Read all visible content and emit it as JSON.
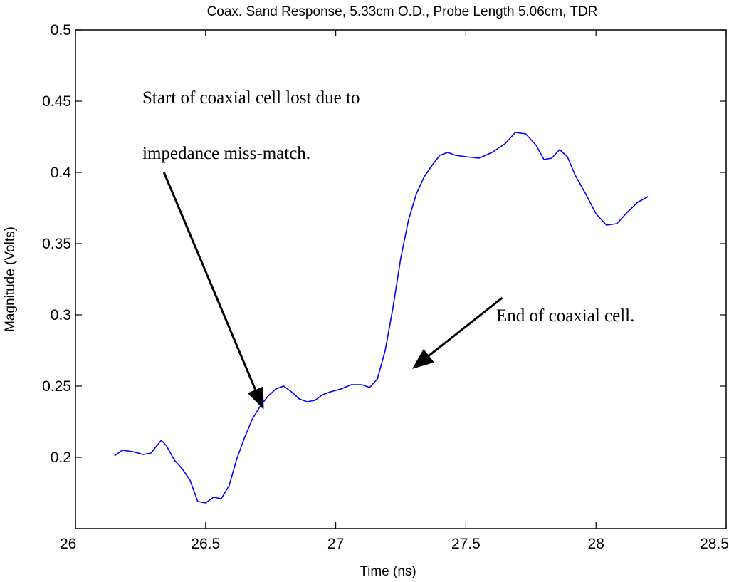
{
  "chart_data": {
    "type": "line",
    "title": "Coax. Sand Response, 5.33cm O.D., Probe Length 5.06cm, TDR",
    "xlabel": "Time (ns)",
    "ylabel": "Magnitude (Volts)",
    "xlim": [
      26,
      28.5
    ],
    "ylim": [
      0.15,
      0.5
    ],
    "xticks": [
      "26",
      "26.5",
      "27",
      "27.5",
      "28",
      "28.5"
    ],
    "yticks": [
      "0.2",
      "0.25",
      "0.3",
      "0.35",
      "0.4",
      "0.45",
      "0.5"
    ],
    "grid": false,
    "series": [
      {
        "color": "#0000ff",
        "x": [
          26.15,
          26.18,
          26.22,
          26.26,
          26.29,
          26.33,
          26.35,
          26.38,
          26.41,
          26.44,
          26.47,
          26.5,
          26.53,
          26.56,
          26.59,
          26.62,
          26.65,
          26.68,
          26.71,
          26.74,
          26.77,
          26.8,
          26.83,
          26.86,
          26.89,
          26.92,
          26.95,
          26.98,
          27.02,
          27.06,
          27.1,
          27.13,
          27.16,
          27.19,
          27.22,
          27.25,
          27.28,
          27.31,
          27.34,
          27.37,
          27.4,
          27.43,
          27.46,
          27.5,
          27.55,
          27.6,
          27.65,
          27.69,
          27.73,
          27.77,
          27.8,
          27.83,
          27.86,
          27.89,
          27.92,
          27.96,
          28.0,
          28.04,
          28.08,
          28.12,
          28.16,
          28.2
        ],
        "y": [
          0.201,
          0.205,
          0.204,
          0.202,
          0.203,
          0.212,
          0.208,
          0.198,
          0.192,
          0.184,
          0.169,
          0.168,
          0.172,
          0.171,
          0.18,
          0.199,
          0.214,
          0.227,
          0.236,
          0.243,
          0.248,
          0.25,
          0.246,
          0.241,
          0.239,
          0.24,
          0.244,
          0.246,
          0.248,
          0.251,
          0.251,
          0.249,
          0.255,
          0.275,
          0.305,
          0.34,
          0.367,
          0.385,
          0.397,
          0.405,
          0.412,
          0.414,
          0.412,
          0.411,
          0.41,
          0.414,
          0.42,
          0.428,
          0.427,
          0.419,
          0.409,
          0.41,
          0.416,
          0.411,
          0.398,
          0.385,
          0.371,
          0.363,
          0.364,
          0.372,
          0.379,
          0.383
        ]
      }
    ],
    "annotations": [
      {
        "lines": [
          "Start of coaxial cell lost due to",
          "impedance miss-match."
        ],
        "arrow_from": [
          26.34,
          0.4
        ],
        "arrow_to": [
          26.72,
          0.235
        ]
      },
      {
        "lines": [
          "End of coaxial cell."
        ],
        "arrow_from": [
          27.64,
          0.312
        ],
        "arrow_to": [
          27.3,
          0.263
        ]
      }
    ]
  }
}
